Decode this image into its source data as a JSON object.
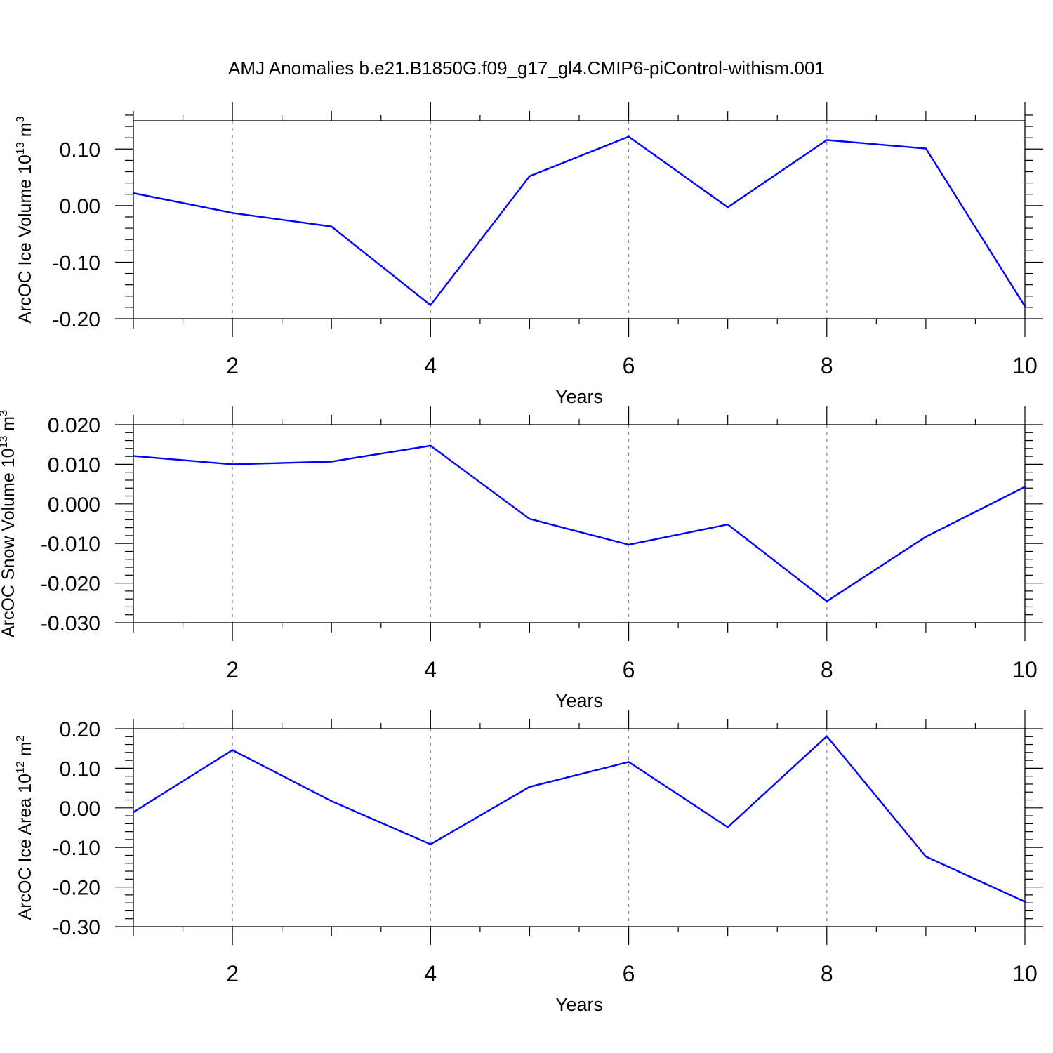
{
  "title": "AMJ Anomalies b.e21.B1850G.f09_g17_gl4.CMIP6-piControl-withism.001",
  "colors": {
    "line": "#0000ff",
    "grid": "#8a8a8a",
    "axes": "#000000",
    "background": "#ffffff"
  },
  "chart_data": [
    {
      "type": "line",
      "ylabel": "ArcOC Ice Volume 10",
      "ylabel_exp": "13",
      "ylabel_unit": " m",
      "ylabel_unit_exp": "3",
      "xlabel": "Years",
      "xlim": [
        1,
        10
      ],
      "ylim": [
        -0.2,
        0.15
      ],
      "xticks": [
        2,
        4,
        6,
        8,
        10
      ],
      "xtick_labels": [
        "2",
        "4",
        "6",
        "8",
        "10"
      ],
      "yticks": [
        -0.2,
        -0.1,
        0.0,
        0.1
      ],
      "ytick_labels": [
        "-0.20",
        "-0.10",
        "0.00",
        "0.10"
      ],
      "grid": "vertical dashed at major x ticks",
      "x": [
        1,
        2,
        3,
        4,
        5,
        6,
        7,
        8,
        9,
        10
      ],
      "values": [
        0.022,
        -0.013,
        -0.037,
        -0.176,
        0.052,
        0.122,
        -0.003,
        0.116,
        0.101,
        -0.178
      ]
    },
    {
      "type": "line",
      "ylabel": "ArcOC Snow Volume 10",
      "ylabel_exp": "13",
      "ylabel_unit": " m",
      "ylabel_unit_exp": "3",
      "xlabel": "Years",
      "xlim": [
        1,
        10
      ],
      "ylim": [
        -0.03,
        0.02
      ],
      "xticks": [
        2,
        4,
        6,
        8,
        10
      ],
      "xtick_labels": [
        "2",
        "4",
        "6",
        "8",
        "10"
      ],
      "yticks": [
        -0.03,
        -0.02,
        -0.01,
        0.0,
        0.01,
        0.02
      ],
      "ytick_labels": [
        "-0.030",
        "-0.020",
        "-0.010",
        "0.000",
        "0.010",
        "0.020"
      ],
      "grid": "vertical dashed at major x ticks",
      "x": [
        1,
        2,
        3,
        4,
        5,
        6,
        7,
        8,
        9,
        10
      ],
      "values": [
        0.0121,
        0.01,
        0.0107,
        0.0147,
        -0.0038,
        -0.0103,
        -0.0052,
        -0.0246,
        -0.0083,
        0.0043
      ]
    },
    {
      "type": "line",
      "ylabel": "ArcOC Ice Area 10",
      "ylabel_exp": "12",
      "ylabel_unit": " m",
      "ylabel_unit_exp": "2",
      "xlabel": "Years",
      "xlim": [
        1,
        10
      ],
      "ylim": [
        -0.3,
        0.2
      ],
      "xticks": [
        2,
        4,
        6,
        8,
        10
      ],
      "xtick_labels": [
        "2",
        "4",
        "6",
        "8",
        "10"
      ],
      "yticks": [
        -0.3,
        -0.2,
        -0.1,
        0.0,
        0.1,
        0.2
      ],
      "ytick_labels": [
        "-0.30",
        "-0.20",
        "-0.10",
        "0.00",
        "0.10",
        "0.20"
      ],
      "grid": "vertical dashed at major x ticks",
      "x": [
        1,
        2,
        3,
        4,
        5,
        6,
        7,
        8,
        9,
        10
      ],
      "values": [
        -0.011,
        0.146,
        0.017,
        -0.092,
        0.053,
        0.116,
        -0.049,
        0.181,
        -0.123,
        -0.237
      ]
    }
  ]
}
